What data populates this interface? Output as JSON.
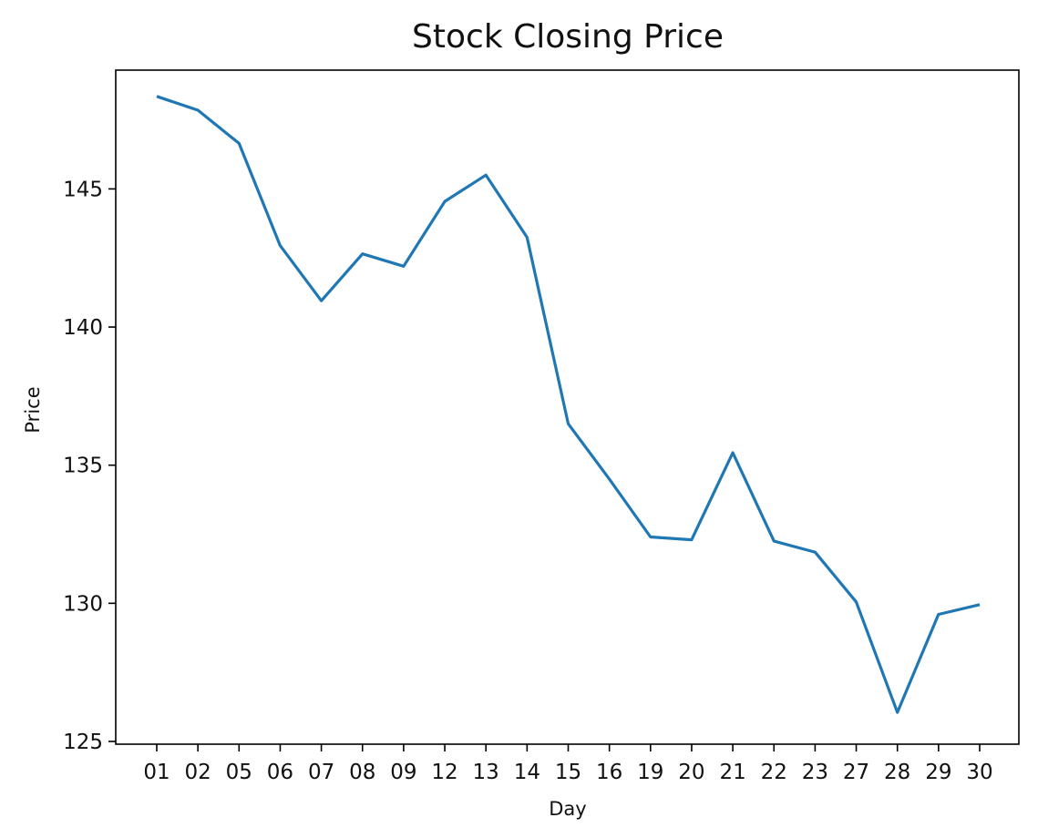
{
  "chart_data": {
    "type": "line",
    "title": "Stock Closing Price",
    "xlabel": "Day",
    "ylabel": "Price",
    "categories": [
      "01",
      "02",
      "05",
      "06",
      "07",
      "08",
      "09",
      "12",
      "13",
      "14",
      "15",
      "16",
      "19",
      "20",
      "21",
      "22",
      "23",
      "27",
      "28",
      "29",
      "30"
    ],
    "series": [
      {
        "values": [
          148.35,
          147.85,
          146.65,
          142.95,
          140.95,
          142.65,
          142.2,
          144.55,
          145.5,
          143.25,
          136.5,
          134.5,
          132.4,
          132.3,
          135.45,
          132.25,
          131.85,
          130.05,
          126.05,
          129.6,
          129.95
        ],
        "color": "#1f77b4"
      }
    ],
    "ylim": [
      124.9,
      149.3
    ],
    "yticks": [
      125,
      130,
      135,
      140,
      145
    ],
    "grid": false,
    "legend": "none"
  }
}
